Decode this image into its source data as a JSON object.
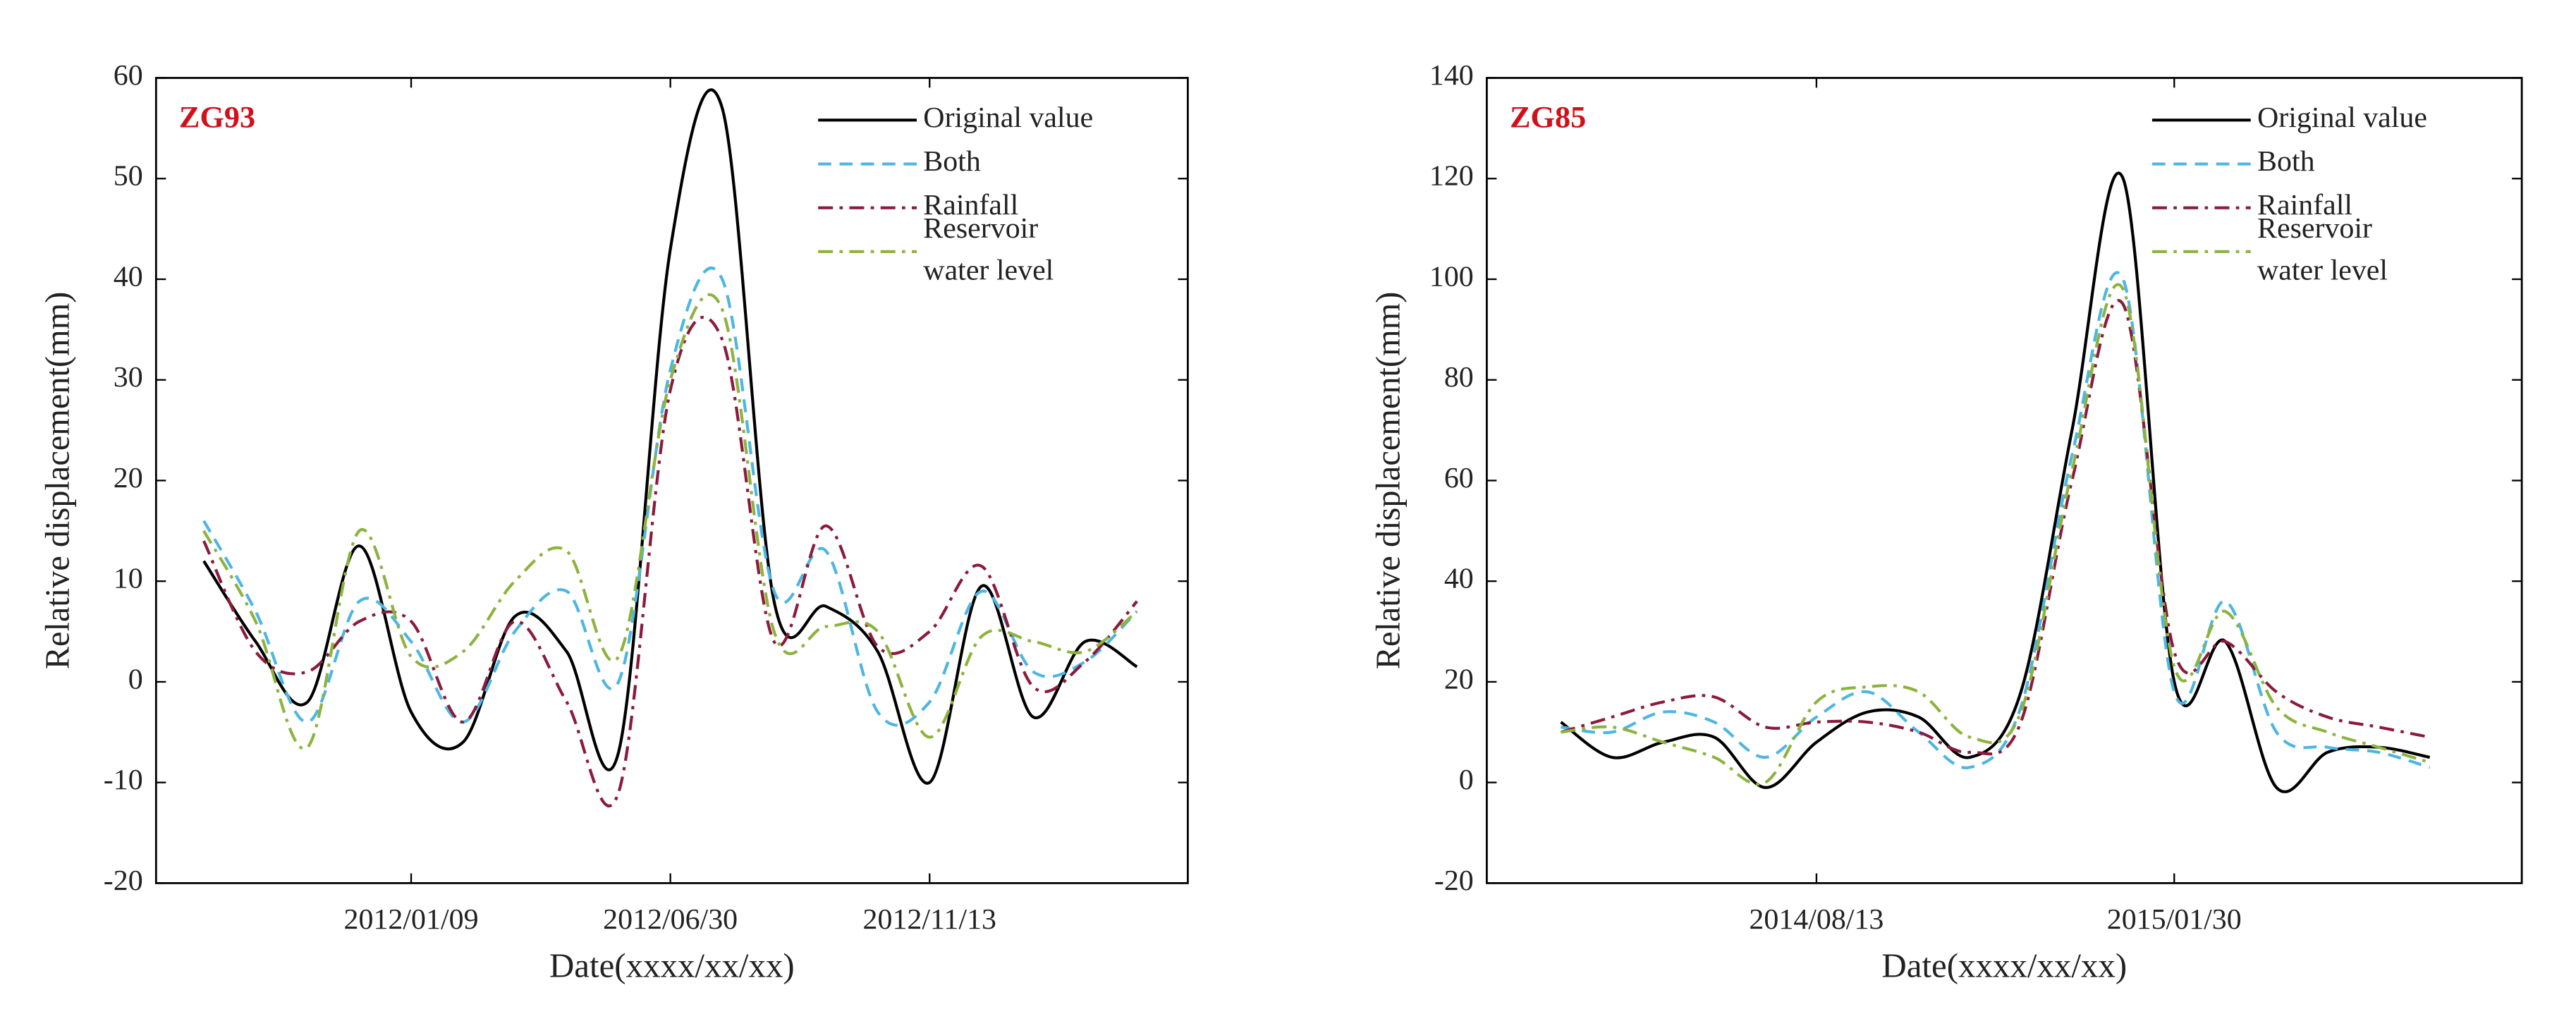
{
  "chart_data": [
    {
      "type": "line",
      "title": "ZG93",
      "x_label": "Date(xxxx/xx/xx)",
      "y_label": "Relative displacement(mm)",
      "categories": [
        null,
        null,
        null,
        null,
        "2012/01/09",
        null,
        null,
        null,
        null,
        "2012/06/30",
        null,
        null,
        null,
        null,
        "2012/11/13",
        null,
        null,
        null,
        null
      ],
      "ylim": [
        -20,
        60
      ],
      "yticks": [
        -20,
        -10,
        0,
        10,
        20,
        30,
        40,
        50,
        60
      ],
      "legend": "upper right",
      "series": [
        {
          "name": "Original value",
          "color": "#000000",
          "dash": "solid",
          "values": [
            12,
            4,
            -2,
            13.5,
            -3,
            -6,
            6.5,
            3,
            -7,
            43,
            57,
            8,
            7.5,
            3,
            -10,
            9.5,
            -3.5,
            4,
            1.5
          ]
        },
        {
          "name": "Both",
          "color": "#4db6e2",
          "dash": "dashed",
          "values": [
            16,
            7,
            -4,
            8,
            4,
            -4,
            5,
            9,
            0,
            31,
            40,
            9,
            13,
            -3,
            -2,
            9,
            1,
            2,
            7
          ]
        },
        {
          "name": "Rainfall",
          "color": "#8b1a3c",
          "dash": "dashdot",
          "values": [
            14,
            3,
            1,
            6,
            6,
            -4,
            6,
            -2,
            -11,
            29,
            34,
            4,
            15.5,
            3.5,
            5,
            11.5,
            -0.5,
            2,
            8
          ]
        },
        {
          "name": "Reservoir water level",
          "color": "#8db33f",
          "dash": "dashdot",
          "values": [
            15,
            6,
            -6.5,
            15,
            2.5,
            3,
            10,
            13,
            2.5,
            30,
            37,
            5,
            5.5,
            5,
            -5.5,
            4.5,
            4,
            3,
            7
          ]
        }
      ]
    },
    {
      "type": "line",
      "title": "ZG85",
      "x_label": "Date(xxxx/xx/xx)",
      "y_label": "Relative displacement(mm)",
      "categories": [
        null,
        null,
        null,
        null,
        null,
        "2014/08/13",
        null,
        null,
        null,
        null,
        null,
        null,
        "2015/01/30",
        null,
        null,
        null,
        null,
        null
      ],
      "ylim": [
        -20,
        140
      ],
      "yticks": [
        -20,
        0,
        20,
        40,
        60,
        80,
        100,
        120,
        140
      ],
      "legend": "upper right",
      "series": [
        {
          "name": "Original value",
          "color": "#000000",
          "dash": "solid",
          "values": [
            12,
            5,
            8,
            9,
            -1,
            8,
            14,
            13,
            5,
            18,
            70,
            120,
            20,
            28,
            -1,
            6,
            7,
            5
          ]
        },
        {
          "name": "Both",
          "color": "#4db6e2",
          "dash": "dashed",
          "values": [
            11,
            10,
            14,
            12,
            5,
            13,
            18,
            10,
            3,
            15,
            65,
            100,
            18,
            36,
            10,
            7,
            6,
            3
          ]
        },
        {
          "name": "Rainfall",
          "color": "#8b1a3c",
          "dash": "dashdot",
          "values": [
            10,
            13,
            16,
            17,
            11,
            12,
            12,
            10,
            6,
            12,
            60,
            95,
            26,
            28,
            18,
            13,
            11,
            9
          ]
        },
        {
          "name": "Reservoir water level",
          "color": "#8db33f",
          "dash": "dashdot",
          "values": [
            10,
            11,
            8,
            5,
            0,
            16,
            19,
            18,
            9,
            14,
            62,
            98,
            23,
            34,
            15,
            10,
            7,
            4
          ]
        }
      ]
    }
  ]
}
